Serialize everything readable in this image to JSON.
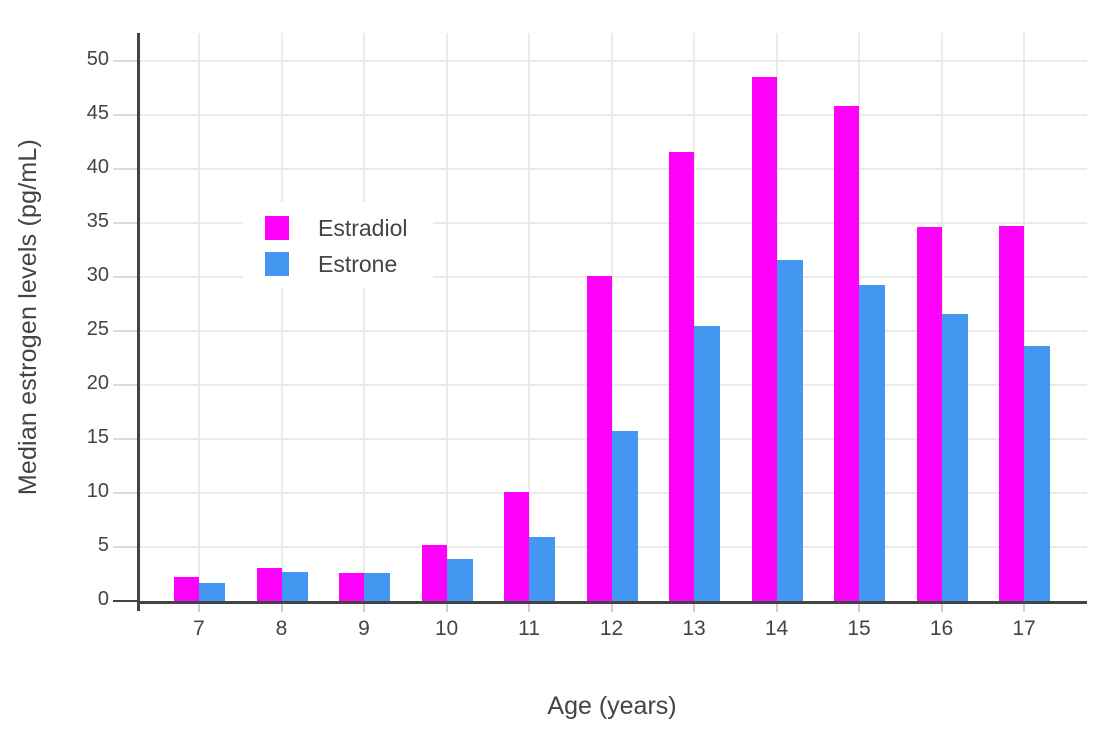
{
  "chart_data": {
    "type": "bar",
    "title": "",
    "xlabel": "Age (years)",
    "ylabel": "Median estrogen levels (pg/mL)",
    "categories": [
      "7",
      "8",
      "9",
      "10",
      "11",
      "12",
      "13",
      "14",
      "15",
      "16",
      "17"
    ],
    "series": [
      {
        "name": "Estradiol",
        "color": "#FF00FA",
        "values": [
          2.2,
          3.1,
          2.6,
          5.2,
          10.1,
          30.1,
          41.6,
          48.5,
          45.8,
          34.6,
          34.7
        ]
      },
      {
        "name": "Estrone",
        "color": "#4497F1",
        "values": [
          1.7,
          2.7,
          2.6,
          3.9,
          5.9,
          15.7,
          25.5,
          31.6,
          29.3,
          26.6,
          23.6
        ]
      }
    ],
    "yticks": [
      0,
      5,
      10,
      15,
      20,
      25,
      30,
      35,
      40,
      45,
      50
    ],
    "ylim": [
      0,
      52.6
    ],
    "grid": true,
    "legend_position": "inside-top-left",
    "colors": {
      "axis": "#444444",
      "gridline": "#EBEBEB",
      "tick": "#DBDBDB",
      "background": "#FFFFFF"
    }
  }
}
